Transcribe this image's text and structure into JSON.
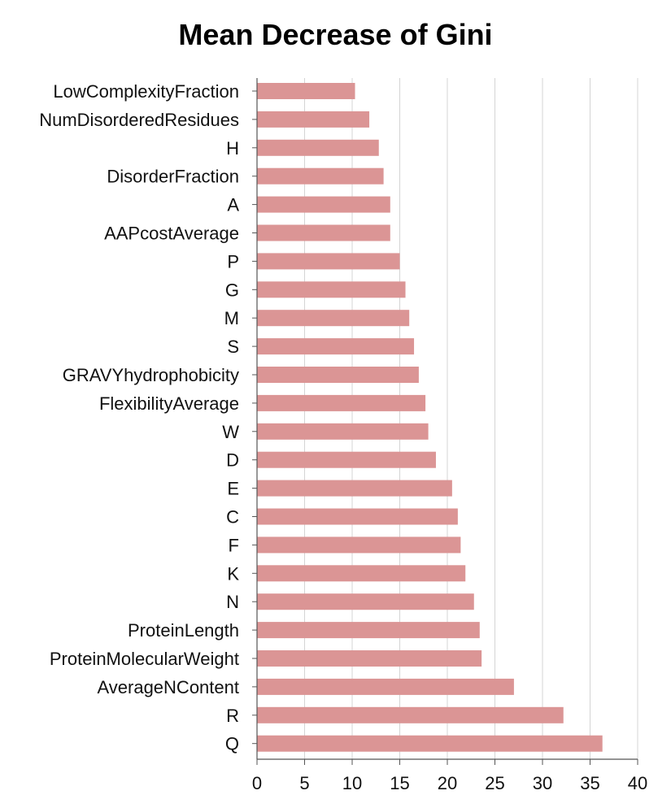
{
  "chart_data": {
    "type": "bar",
    "orientation": "horizontal",
    "title": "Mean Decrease of Gini",
    "xlabel": "",
    "ylabel": "",
    "xlim": [
      0,
      40
    ],
    "xticks": [
      0,
      5,
      10,
      15,
      20,
      25,
      30,
      35,
      40
    ],
    "grid": "vertical",
    "bar_color": "#db9595",
    "categories": [
      "LowComplexityFraction",
      "NumDisorderedResidues",
      "H",
      "DisorderFraction",
      "A",
      "AAPcostAverage",
      "P",
      "G",
      "M",
      "S",
      "GRAVYhydrophobicity",
      "FlexibilityAverage",
      "W",
      "D",
      "E",
      "C",
      "F",
      "K",
      "N",
      "ProteinLength",
      "ProteinMolecularWeight",
      "AverageNContent",
      "R",
      "Q"
    ],
    "values": [
      10.3,
      11.8,
      12.8,
      13.3,
      14.0,
      14.0,
      15.0,
      15.6,
      16.0,
      16.5,
      17.0,
      17.7,
      18.0,
      18.8,
      20.5,
      21.1,
      21.4,
      21.9,
      22.8,
      23.4,
      23.6,
      27.0,
      32.2,
      36.3
    ]
  }
}
